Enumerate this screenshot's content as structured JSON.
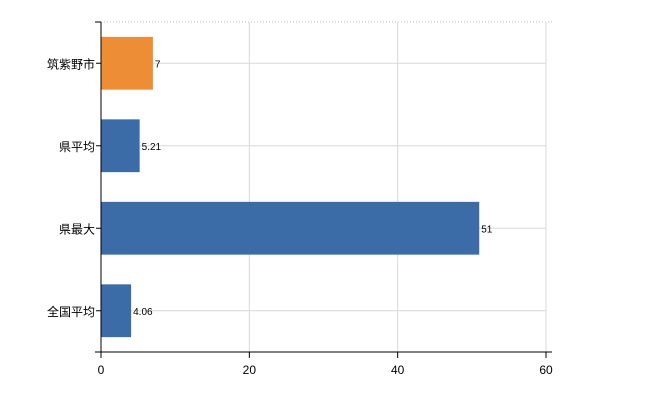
{
  "chart_data": {
    "type": "bar",
    "orientation": "horizontal",
    "categories": [
      "筑紫野市",
      "県平均",
      "県最大",
      "全国平均"
    ],
    "values": [
      7,
      5.21,
      51,
      4.06
    ],
    "value_labels": [
      "7",
      "5.21",
      "51",
      "4.06"
    ],
    "bar_colors": [
      "#ed8e36",
      "#3c6ca8",
      "#3c6ca8",
      "#3c6ca8"
    ],
    "xlim": [
      0,
      60
    ],
    "x_ticks": [
      0,
      20,
      40,
      60
    ],
    "x_tick_labels": [
      "0",
      "20",
      "40",
      "60"
    ],
    "grid": true,
    "legend": "none"
  }
}
